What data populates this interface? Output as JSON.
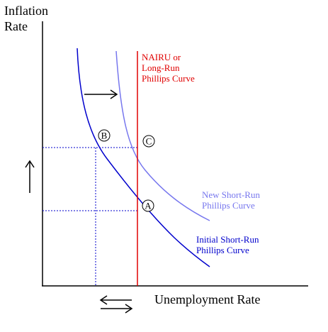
{
  "axes": {
    "y_label_lines": [
      "Inflation",
      "Rate"
    ],
    "x_label": "Unemployment Rate"
  },
  "nairu": {
    "label_lines": [
      "NAIRU or",
      "Long-Run",
      "Phillips Curve"
    ],
    "color": "#e00000"
  },
  "initial_curve": {
    "label_lines": [
      "Initial Short-Run",
      "Phillips Curve"
    ],
    "color": "#0000cc"
  },
  "new_curve": {
    "label_lines": [
      "New Short-Run",
      "Phillips Curve"
    ],
    "color": "#7777ee"
  },
  "points": {
    "a": "A",
    "b": "B",
    "c": "C"
  },
  "guide_color": "#0000cc"
}
